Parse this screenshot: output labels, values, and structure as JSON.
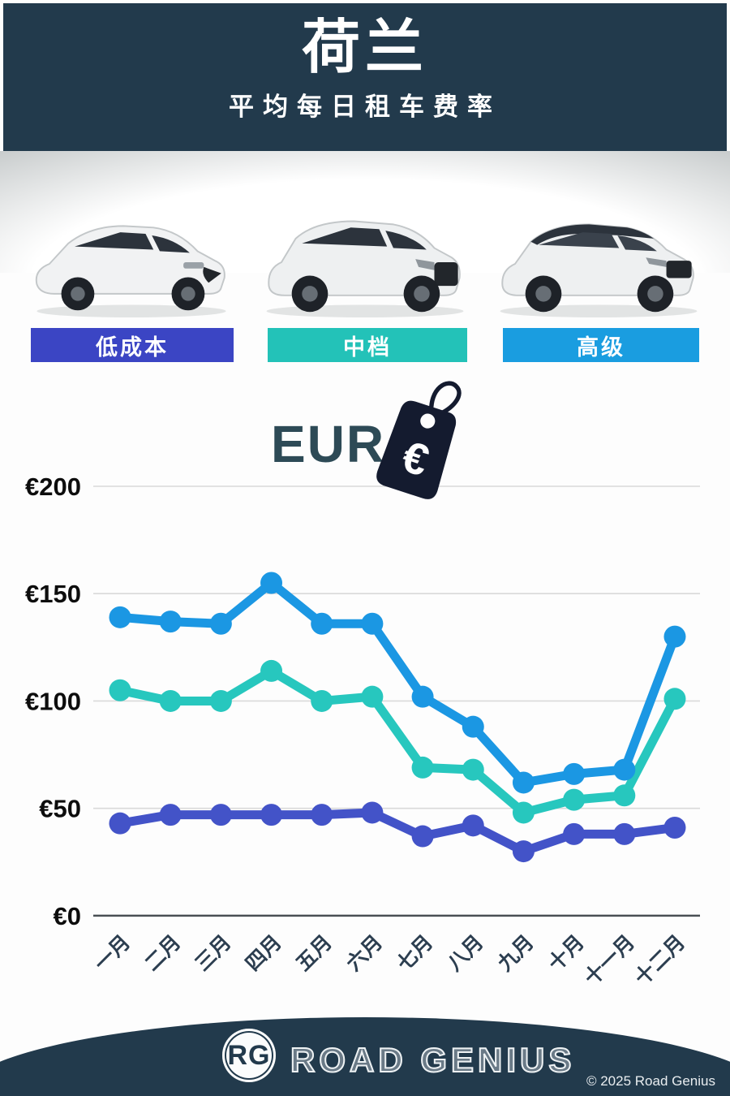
{
  "header": {
    "title": "荷兰",
    "subtitle": "平均每日租车费率"
  },
  "categories": [
    {
      "label": "低成本",
      "color": "#3b45c4"
    },
    {
      "label": "中档",
      "color": "#23c2b8"
    },
    {
      "label": "高级",
      "color": "#1a9de0"
    }
  ],
  "currency": {
    "label": "EUR",
    "symbol": "€"
  },
  "chart_data": {
    "type": "line",
    "categories": [
      "一月",
      "二月",
      "三月",
      "四月",
      "五月",
      "六月",
      "七月",
      "八月",
      "九月",
      "十月",
      "十一月",
      "十二月"
    ],
    "series": [
      {
        "name": "低成本",
        "color": "#4353c8",
        "values": [
          43,
          47,
          47,
          47,
          47,
          48,
          37,
          42,
          30,
          38,
          38,
          41
        ]
      },
      {
        "name": "中档",
        "color": "#27c7be",
        "values": [
          105,
          100,
          100,
          114,
          100,
          102,
          69,
          68,
          48,
          54,
          56,
          101
        ]
      },
      {
        "name": "高级",
        "color": "#1b97e3",
        "values": [
          139,
          137,
          136,
          155,
          136,
          136,
          102,
          88,
          62,
          66,
          68,
          130
        ]
      }
    ],
    "yticks": [
      0,
      50,
      100,
      150,
      200
    ],
    "ytick_labels": [
      "€0",
      "€50",
      "€100",
      "€150",
      "€200"
    ],
    "ylim": [
      0,
      200
    ],
    "grid": true,
    "legend_position": "none",
    "title": "",
    "xlabel": "",
    "ylabel": ""
  },
  "footer": {
    "logo_initials": "RG",
    "brand": "ROAD GENIUS",
    "copyright": "© 2025 Road Genius"
  }
}
